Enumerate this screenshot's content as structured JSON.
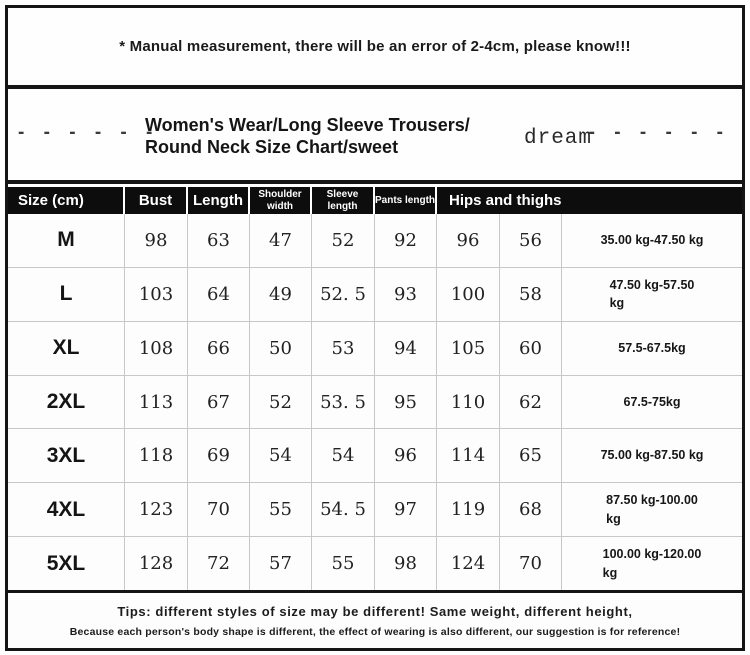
{
  "banner": {
    "text": "* Manual measurement, there will be an error of 2-4cm, please know!!!"
  },
  "title": {
    "line1": "Women's Wear/Long Sleeve Trousers/",
    "line2": "Round Neck Size Chart/sweet",
    "brand": "dream",
    "left_dashes": "- - - - - -",
    "right_dashes": "- - - - - -"
  },
  "table": {
    "headers": [
      "Size (cm)",
      "Bust",
      "Length",
      "Shoulder width",
      "Sleeve length",
      "Pants length",
      "Hips and thighs"
    ],
    "rows": [
      {
        "size": "M",
        "bust": "98",
        "length": "63",
        "shoulder": "47",
        "sleeve": "52",
        "pants": "92",
        "hips": "96",
        "thighs": "56",
        "weight": "35.00 kg-47.50 kg"
      },
      {
        "size": "L",
        "bust": "103",
        "length": "64",
        "shoulder": "49",
        "sleeve": "52. 5",
        "pants": "93",
        "hips": "100",
        "thighs": "58",
        "weight": "47.50 kg-57.50\nkg"
      },
      {
        "size": "XL",
        "bust": "108",
        "length": "66",
        "shoulder": "50",
        "sleeve": "53",
        "pants": "94",
        "hips": "105",
        "thighs": "60",
        "weight": "57.5-67.5kg"
      },
      {
        "size": "2XL",
        "bust": "113",
        "length": "67",
        "shoulder": "52",
        "sleeve": "53. 5",
        "pants": "95",
        "hips": "110",
        "thighs": "62",
        "weight": "67.5-75kg"
      },
      {
        "size": "3XL",
        "bust": "118",
        "length": "69",
        "shoulder": "54",
        "sleeve": "54",
        "pants": "96",
        "hips": "114",
        "thighs": "65",
        "weight": "75.00 kg-87.50 kg"
      },
      {
        "size": "4XL",
        "bust": "123",
        "length": "70",
        "shoulder": "55",
        "sleeve": "54. 5",
        "pants": "97",
        "hips": "119",
        "thighs": "68",
        "weight": "87.50 kg-100.00\nkg"
      },
      {
        "size": "5XL",
        "bust": "128",
        "length": "72",
        "shoulder": "57",
        "sleeve": "55",
        "pants": "98",
        "hips": "124",
        "thighs": "70",
        "weight": "100.00 kg-120.00\nkg"
      }
    ]
  },
  "tips": {
    "line1": "Tips: different styles of size may be different! Same weight, different height,",
    "line2": "Because each person's body shape is different, the effect of wearing is also different, our suggestion is for reference!"
  },
  "colors": {
    "frame_border": "#151515",
    "header_bg": "#0d0d0d",
    "header_text": "#ffffff",
    "gridline": "#c8c8c8",
    "background": "#ffffff"
  }
}
